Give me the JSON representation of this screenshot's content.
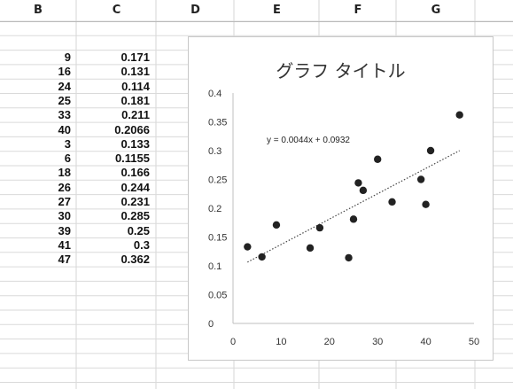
{
  "columns": [
    "B",
    "C",
    "D",
    "E",
    "F",
    "G"
  ],
  "rows": [
    {
      "b": "9",
      "c": "0.171"
    },
    {
      "b": "16",
      "c": "0.131"
    },
    {
      "b": "24",
      "c": "0.114"
    },
    {
      "b": "25",
      "c": "0.181"
    },
    {
      "b": "33",
      "c": "0.211"
    },
    {
      "b": "40",
      "c": "0.2066"
    },
    {
      "b": "3",
      "c": "0.133"
    },
    {
      "b": "6",
      "c": "0.1155"
    },
    {
      "b": "18",
      "c": "0.166"
    },
    {
      "b": "26",
      "c": "0.244"
    },
    {
      "b": "27",
      "c": "0.231"
    },
    {
      "b": "30",
      "c": "0.285"
    },
    {
      "b": "39",
      "c": "0.25"
    },
    {
      "b": "41",
      "c": "0.3"
    },
    {
      "b": "47",
      "c": "0.362"
    }
  ],
  "chart_data": {
    "type": "scatter",
    "title": "グラフ タイトル",
    "x": [
      9,
      16,
      24,
      25,
      33,
      40,
      3,
      6,
      18,
      26,
      27,
      30,
      39,
      41,
      47
    ],
    "y": [
      0.171,
      0.131,
      0.114,
      0.181,
      0.211,
      0.2066,
      0.133,
      0.1155,
      0.166,
      0.244,
      0.231,
      0.285,
      0.25,
      0.3,
      0.362
    ],
    "xlim": [
      0,
      50
    ],
    "ylim": [
      0,
      0.4
    ],
    "xticks": [
      "0",
      "10",
      "20",
      "30",
      "40",
      "50"
    ],
    "yticks": [
      "0",
      "0.05",
      "0.1",
      "0.15",
      "0.2",
      "0.25",
      "0.3",
      "0.35",
      "0.4"
    ],
    "trendline": {
      "slope": 0.0044,
      "intercept": 0.0932,
      "style": "dotted"
    },
    "equation": "y = 0.0044x + 0.0932",
    "grid": false,
    "legend": "none",
    "marker_color": "#222222"
  }
}
